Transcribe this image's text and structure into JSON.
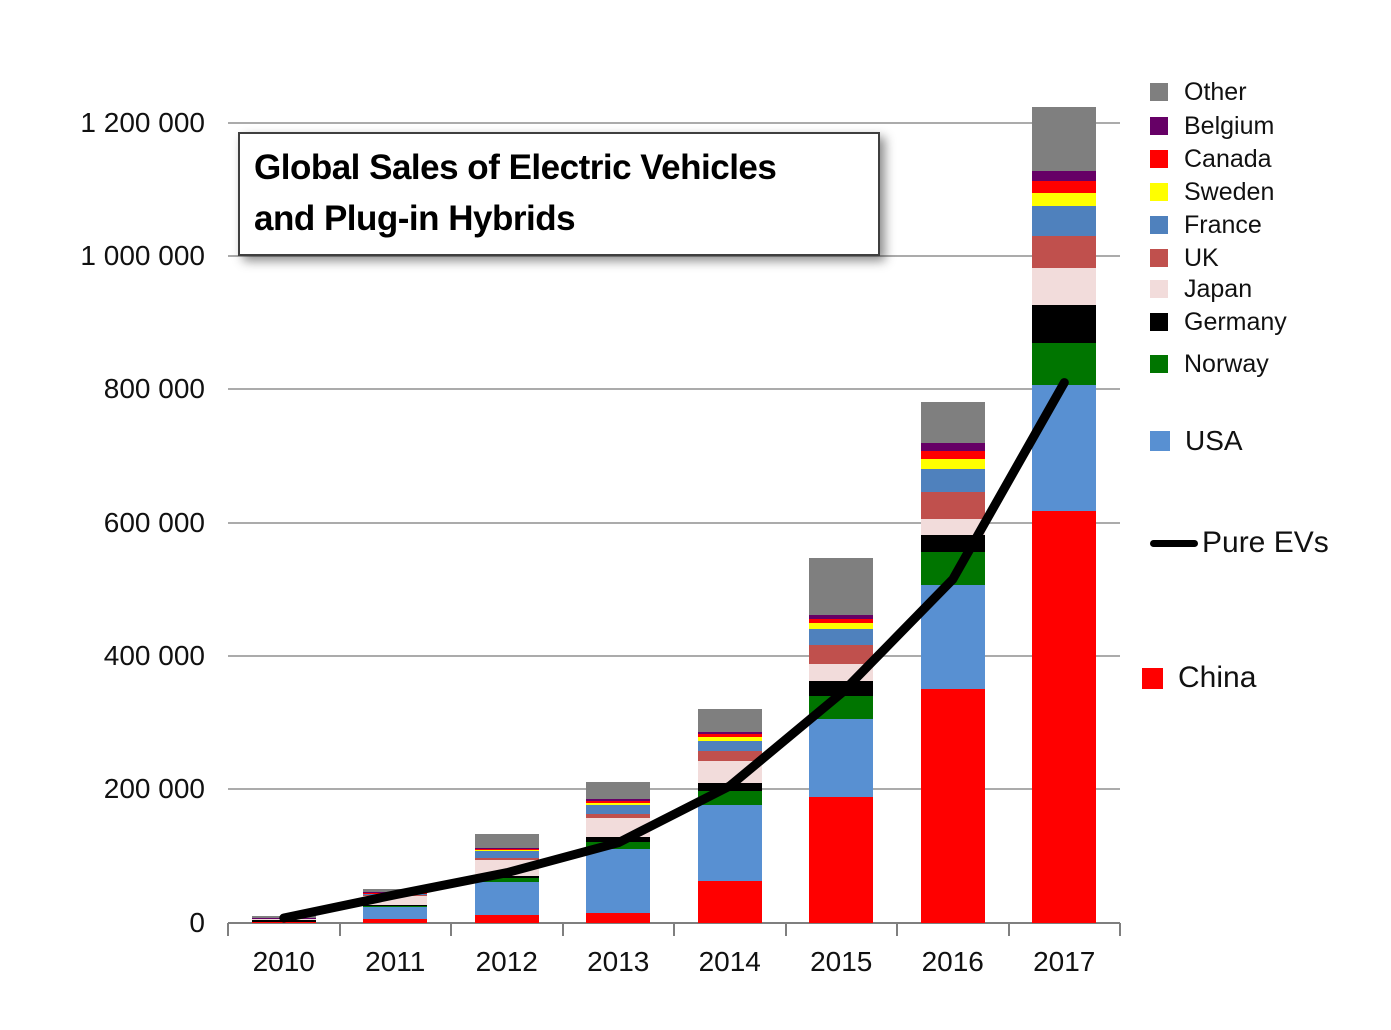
{
  "title": {
    "line1": "Global Sales of Electric Vehicles",
    "line2": "and Plug-in Hybrids"
  },
  "chart_data": {
    "type": "bar",
    "stacked": true,
    "title": "Global Sales of Electric Vehicles and Plug-in Hybrids",
    "xlabel": "",
    "ylabel": "",
    "ylim": [
      0,
      1200000
    ],
    "grid": true,
    "legend_position": "right",
    "categories": [
      "2010",
      "2011",
      "2012",
      "2013",
      "2014",
      "2015",
      "2016",
      "2017"
    ],
    "yticks": [
      0,
      200000,
      400000,
      600000,
      800000,
      1000000,
      1200000
    ],
    "ytick_labels": [
      "0",
      "200 000",
      "400 000",
      "600 000",
      "800 000",
      "1 000 000",
      "1 200 000"
    ],
    "series": [
      {
        "name": "China",
        "color": "#FF0000",
        "values": [
          1500,
          5000,
          11500,
          15000,
          62000,
          189000,
          351000,
          618000
        ]
      },
      {
        "name": "USA",
        "color": "#5890D2",
        "values": [
          1200,
          18000,
          50000,
          96000,
          115000,
          117000,
          155000,
          189000
        ]
      },
      {
        "name": "Norway",
        "color": "#007500",
        "values": [
          500,
          2000,
          5000,
          10000,
          20000,
          34000,
          50000,
          62000
        ]
      },
      {
        "name": "Germany",
        "color": "#000000",
        "values": [
          300,
          2000,
          3500,
          8000,
          13000,
          23000,
          25000,
          58000
        ]
      },
      {
        "name": "Japan",
        "color": "#F2DCDB",
        "values": [
          2500,
          13000,
          24000,
          28000,
          32000,
          25000,
          24000,
          55000
        ]
      },
      {
        "name": "UK",
        "color": "#C0504D",
        "values": [
          800,
          1500,
          3500,
          6000,
          16000,
          28000,
          41000,
          48000
        ]
      },
      {
        "name": "France",
        "color": "#4F81BD",
        "values": [
          500,
          3000,
          10000,
          14000,
          15000,
          24000,
          35000,
          45000
        ]
      },
      {
        "name": "Sweden",
        "color": "#FFFF00",
        "values": [
          100,
          500,
          1500,
          2500,
          5000,
          9000,
          14000,
          20000
        ]
      },
      {
        "name": "Canada",
        "color": "#FF0000",
        "values": [
          200,
          500,
          2000,
          3000,
          5000,
          7000,
          12000,
          18000
        ]
      },
      {
        "name": "Belgium",
        "color": "#660066",
        "values": [
          100,
          500,
          1500,
          2500,
          3000,
          6000,
          12000,
          14000
        ]
      },
      {
        "name": "Other",
        "color": "#7F7F7F",
        "values": [
          2600,
          5000,
          21000,
          26000,
          34000,
          85000,
          62000,
          96000
        ]
      }
    ],
    "line_series": {
      "name": "Pure EVs",
      "color": "#000000",
      "values": [
        7000,
        42000,
        75000,
        120000,
        205000,
        344000,
        515000,
        810000
      ]
    }
  },
  "legend": {
    "items": [
      {
        "label": "Other",
        "color": "#7F7F7F",
        "type": "swatch",
        "size": "small"
      },
      {
        "label": "Belgium",
        "color": "#660066",
        "type": "swatch",
        "size": "small"
      },
      {
        "label": "Canada",
        "color": "#FF0000",
        "type": "swatch",
        "size": "small"
      },
      {
        "label": "Sweden",
        "color": "#FFFF00",
        "type": "swatch",
        "size": "small"
      },
      {
        "label": "France",
        "color": "#4F81BD",
        "type": "swatch",
        "size": "small"
      },
      {
        "label": "UK",
        "color": "#C0504D",
        "type": "swatch",
        "size": "small"
      },
      {
        "label": "Japan",
        "color": "#F2DCDB",
        "type": "swatch",
        "size": "small"
      },
      {
        "label": "Germany",
        "color": "#000000",
        "type": "swatch",
        "size": "small"
      },
      {
        "label": "Norway",
        "color": "#007500",
        "type": "swatch",
        "size": "small"
      },
      {
        "label": "USA",
        "color": "#5890D2",
        "type": "swatch",
        "size": "medium"
      },
      {
        "label": "Pure EVs",
        "color": "#000000",
        "type": "line",
        "size": "large"
      },
      {
        "label": "China",
        "color": "#FF0000",
        "type": "swatch",
        "size": "large"
      }
    ]
  }
}
